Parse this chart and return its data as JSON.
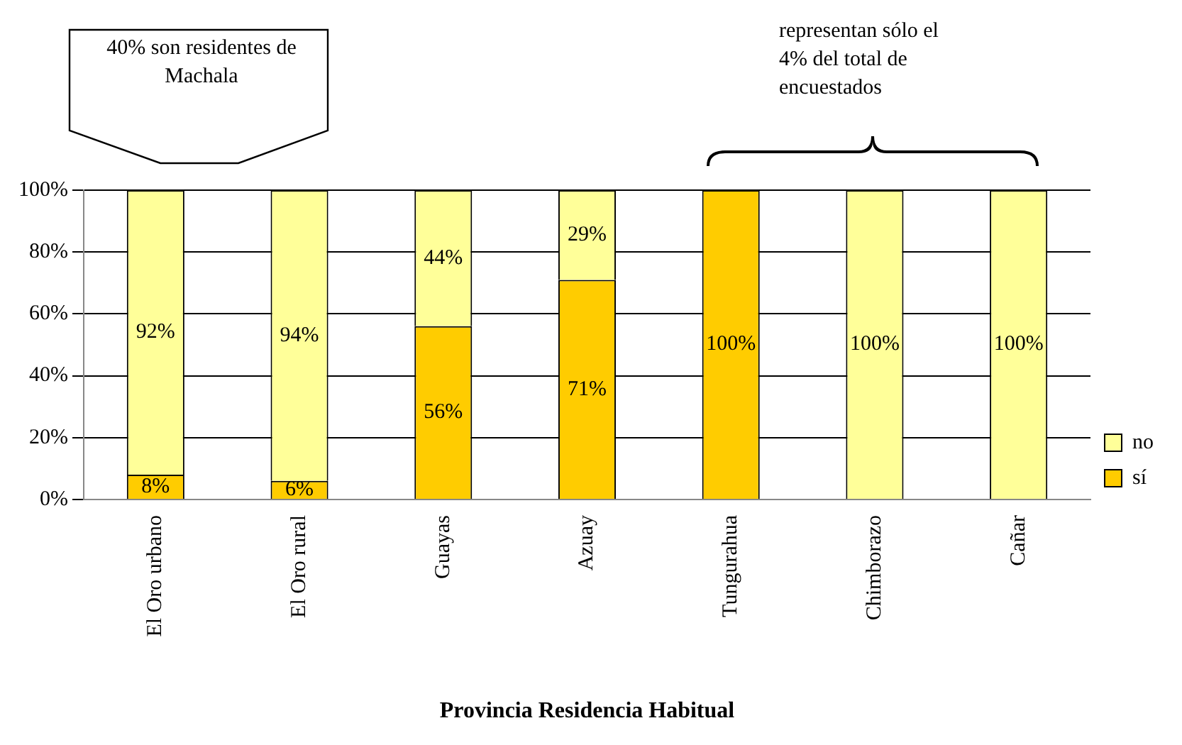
{
  "chart_data": {
    "type": "bar",
    "stacked": true,
    "xlabel": "Provincia Residencia Habitual",
    "categories": [
      "El Oro urbano",
      "El Oro rural",
      "Guayas",
      "Azuay",
      "Tungurahua",
      "Chimborazo",
      "Cañar"
    ],
    "series": [
      {
        "name": "sí",
        "color": "#ffcc00",
        "values": [
          8,
          6,
          56,
          71,
          100,
          0,
          0
        ],
        "value_labels": [
          "8%",
          "6%",
          "56%",
          "71%",
          "100%",
          null,
          null
        ]
      },
      {
        "name": "no",
        "color": "#ffff99",
        "values": [
          92,
          94,
          44,
          29,
          0,
          100,
          100
        ],
        "value_labels": [
          "92%",
          "94%",
          "44%",
          "29%",
          null,
          "100%",
          "100%"
        ]
      }
    ],
    "ylim": [
      0,
      100
    ],
    "yticks": [
      {
        "value": 0,
        "label": "0%"
      },
      {
        "value": 20,
        "label": "20%"
      },
      {
        "value": 40,
        "label": "40%"
      },
      {
        "value": 60,
        "label": "60%"
      },
      {
        "value": 80,
        "label": "80%"
      },
      {
        "value": 100,
        "label": "100%"
      }
    ],
    "grid": "y",
    "legend": "right",
    "annotations": [
      "40% son residentes de Machala",
      "representan sólo el 4% del total de encuestados"
    ]
  }
}
